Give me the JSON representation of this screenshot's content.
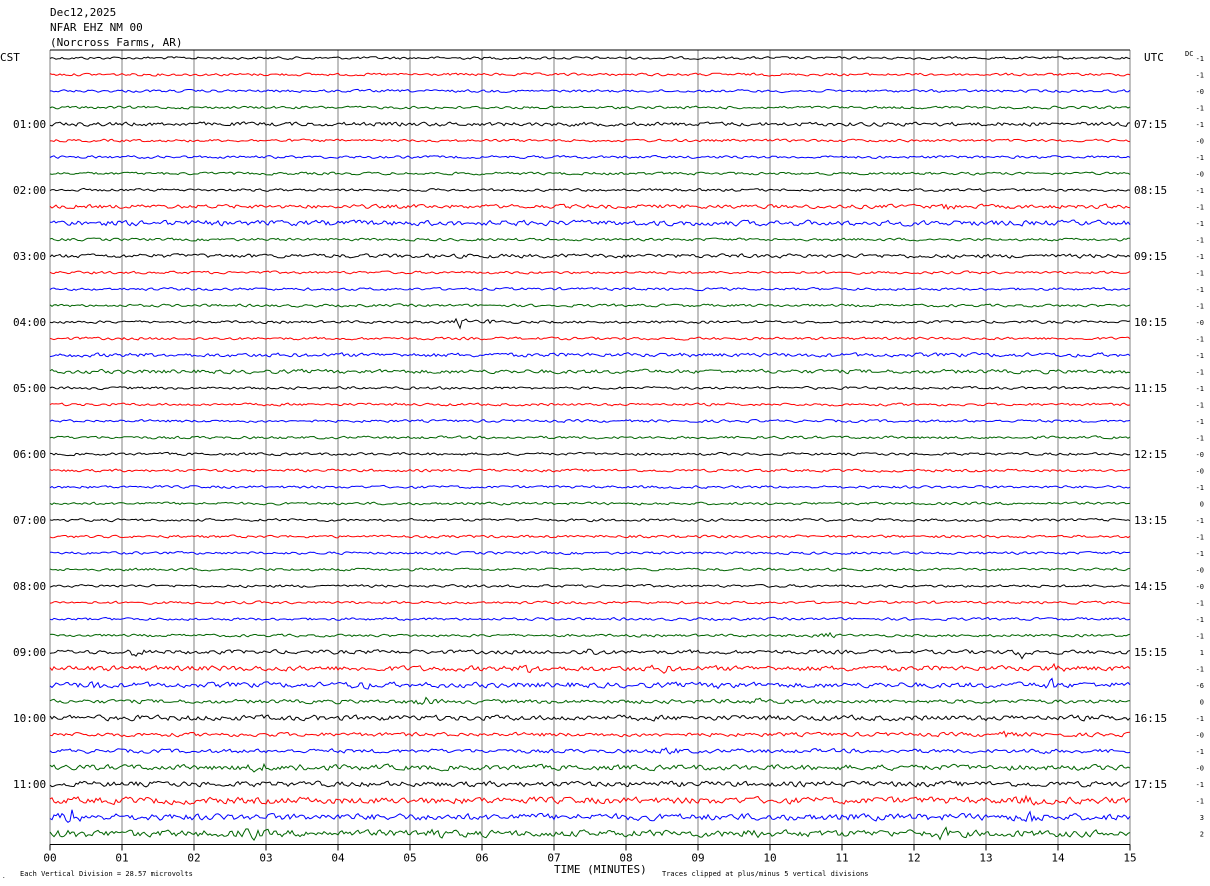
{
  "header": {
    "date": "Dec12,2025",
    "station": "NFAR EHZ NM 00",
    "location": "(Norcross Farms, AR)"
  },
  "left_timezone": "CST",
  "right_timezone": "UTC",
  "dc_label": "DC",
  "footer": {
    "scale_note": "Each Vertical Division =   28.57 microvolts",
    "xlabel": "TIME (MINUTES)",
    "clip_note": "Traces clipped at plus/minus 5 vertical divisions"
  },
  "colors": {
    "trace_cycle": [
      "#000000",
      "#ff0000",
      "#0000ff",
      "#006400"
    ],
    "grid": "#808080",
    "background": "#ffffff"
  },
  "chart_data": {
    "type": "line",
    "subtype": "helicorder",
    "xlabel": "TIME (MINUTES)",
    "xlim": [
      0,
      15
    ],
    "xticks": [
      "00",
      "01",
      "02",
      "03",
      "04",
      "05",
      "06",
      "07",
      "08",
      "09",
      "10",
      "11",
      "12",
      "13",
      "14",
      "15"
    ],
    "grid": true,
    "trace_minutes": 15,
    "traces_per_hour": 4,
    "hour_rows": [
      {
        "cst": "",
        "utc": ""
      },
      {
        "cst": "01:00",
        "utc": "07:15"
      },
      {
        "cst": "02:00",
        "utc": "08:15"
      },
      {
        "cst": "03:00",
        "utc": "09:15"
      },
      {
        "cst": "04:00",
        "utc": "10:15"
      },
      {
        "cst": "05:00",
        "utc": "11:15"
      },
      {
        "cst": "06:00",
        "utc": "12:15"
      },
      {
        "cst": "07:00",
        "utc": "13:15"
      },
      {
        "cst": "08:00",
        "utc": "14:15"
      },
      {
        "cst": "09:00",
        "utc": "15:15"
      },
      {
        "cst": "10:00",
        "utc": "16:15"
      },
      {
        "cst": "11:00",
        "utc": "17:15"
      }
    ],
    "dc_offsets": [
      "-1",
      "-1",
      "-0",
      "-1",
      "-1",
      "-0",
      "-1",
      "-0",
      "-1",
      "-1",
      "-1",
      "-1",
      "-1",
      "-1",
      "-1",
      "-1",
      "-0",
      "-1",
      "-1",
      "-1",
      "-1",
      "-1",
      "-1",
      "-1",
      "-0",
      "-0",
      "-1",
      "0",
      "-1",
      "-1",
      "-1",
      "-0",
      "-0",
      "-1",
      "-1",
      "-1",
      "1",
      "-1",
      "-6",
      "0",
      "-1",
      "-0",
      "-1",
      "-0",
      "-1",
      "-1",
      "3",
      "2"
    ],
    "noise_amplitude": [
      2,
      2,
      2,
      2,
      3,
      2,
      2,
      2,
      2,
      3,
      4,
      2,
      3,
      2,
      2,
      2,
      2,
      2,
      3,
      3,
      2,
      2,
      2,
      2,
      2,
      2,
      2,
      2,
      2,
      2,
      2,
      2,
      2,
      2,
      2,
      2,
      3,
      4,
      4,
      3,
      4,
      3,
      3,
      4,
      4,
      5,
      5,
      5
    ],
    "events": [
      {
        "trace": 9,
        "minute": 12.5,
        "amp": 5
      },
      {
        "trace": 16,
        "minute": 5.7,
        "amp": 9
      },
      {
        "trace": 16,
        "minute": 6.1,
        "amp": 4
      },
      {
        "trace": 35,
        "minute": 10.8,
        "amp": 5
      },
      {
        "trace": 36,
        "minute": 1.2,
        "amp": 7
      },
      {
        "trace": 36,
        "minute": 7.5,
        "amp": 7
      },
      {
        "trace": 36,
        "minute": 13.5,
        "amp": 8
      },
      {
        "trace": 37,
        "minute": 6.7,
        "amp": 10
      },
      {
        "trace": 37,
        "minute": 8.5,
        "amp": 6
      },
      {
        "trace": 37,
        "minute": 13.9,
        "amp": 6
      },
      {
        "trace": 38,
        "minute": 0.6,
        "amp": 8
      },
      {
        "trace": 38,
        "minute": 4.3,
        "amp": 8
      },
      {
        "trace": 38,
        "minute": 9.4,
        "amp": 7
      },
      {
        "trace": 38,
        "minute": 13.9,
        "amp": 8
      },
      {
        "trace": 39,
        "minute": 5.2,
        "amp": 8
      },
      {
        "trace": 39,
        "minute": 9.8,
        "amp": 5
      },
      {
        "trace": 41,
        "minute": 13.3,
        "amp": 4
      },
      {
        "trace": 42,
        "minute": 8.6,
        "amp": 8
      },
      {
        "trace": 42,
        "minute": 13.7,
        "amp": 5
      },
      {
        "trace": 43,
        "minute": 2.9,
        "amp": 9
      },
      {
        "trace": 43,
        "minute": 3.5,
        "amp": 7
      },
      {
        "trace": 45,
        "minute": 13.6,
        "amp": 7
      },
      {
        "trace": 46,
        "minute": 0.3,
        "amp": 12
      },
      {
        "trace": 46,
        "minute": 13.6,
        "amp": 12
      },
      {
        "trace": 47,
        "minute": 0.3,
        "amp": 10
      },
      {
        "trace": 47,
        "minute": 2.8,
        "amp": 9
      },
      {
        "trace": 47,
        "minute": 5.3,
        "amp": 12
      },
      {
        "trace": 47,
        "minute": 9.7,
        "amp": 7
      },
      {
        "trace": 47,
        "minute": 12.4,
        "amp": 8
      }
    ]
  }
}
